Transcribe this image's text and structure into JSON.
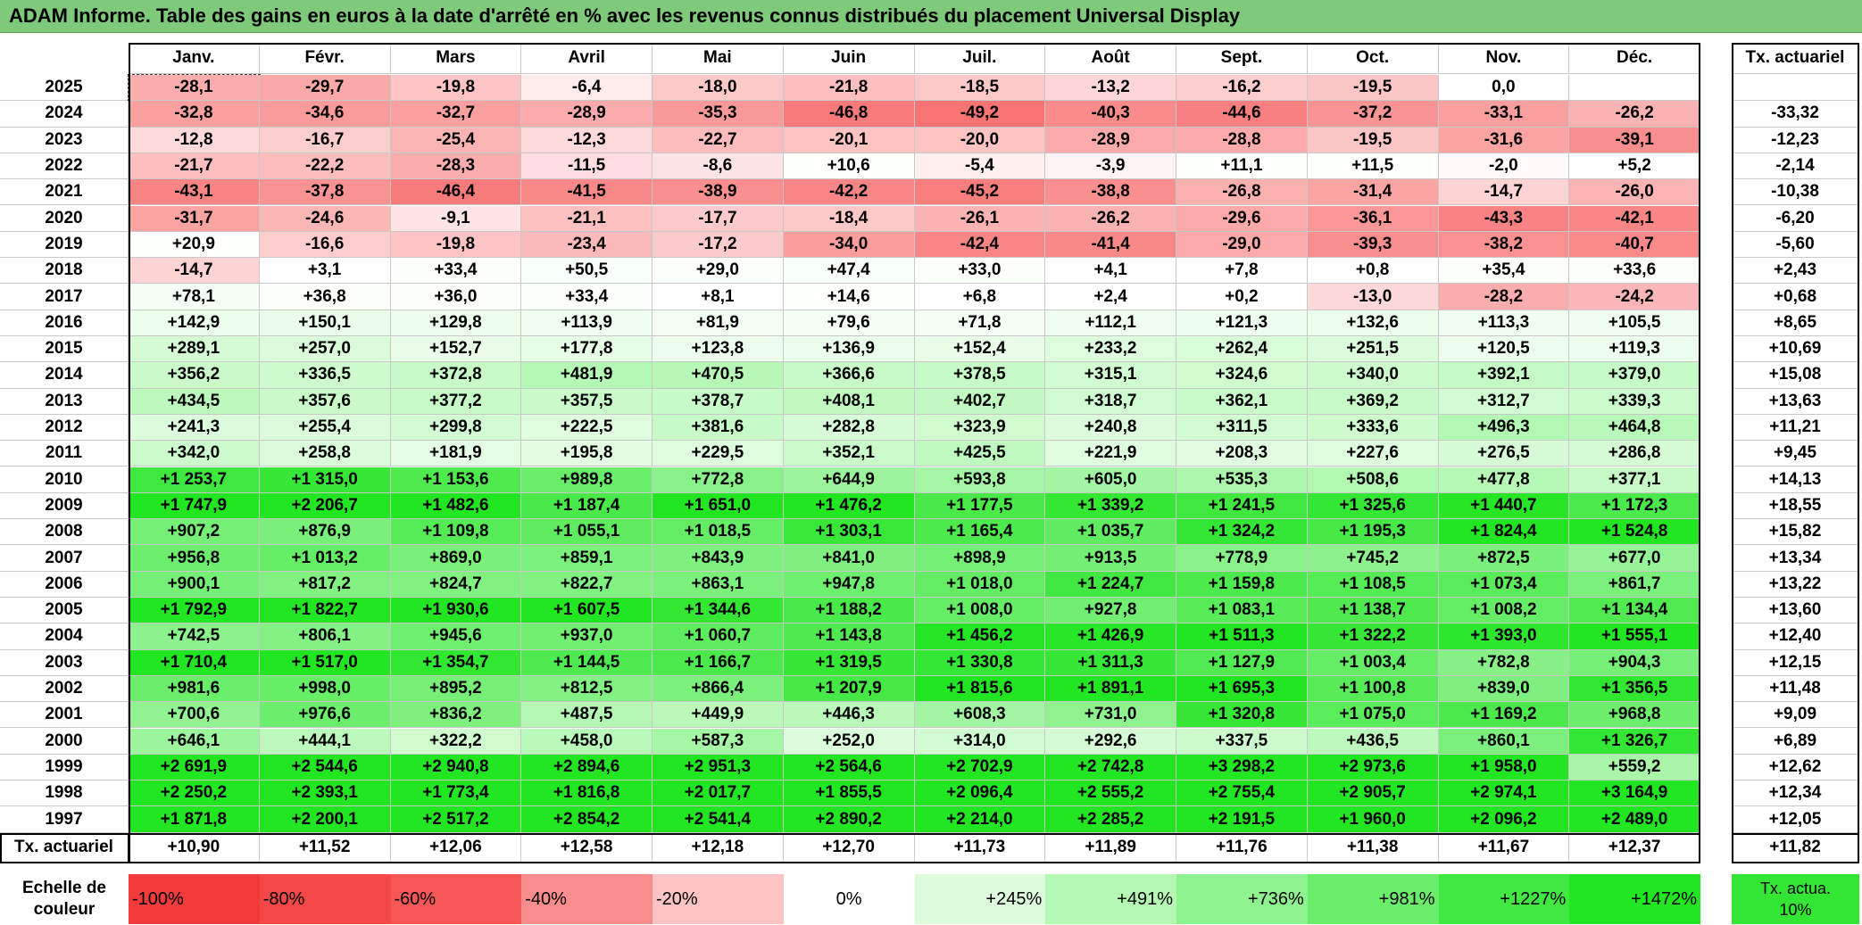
{
  "title": "ADAM Informe. Table des gains en euros à la date d'arrêté en % avec les revenus connus distribués du placement Universal Display",
  "table": {
    "header": [
      "Janv.",
      "Févr.",
      "Mars",
      "Avril",
      "Mai",
      "Juin",
      "Juil.",
      "Août",
      "Sept.",
      "Oct.",
      "Nov.",
      "Déc."
    ],
    "tx_header": "Tx. actuariel",
    "rows": [
      {
        "year": "2025",
        "cells": [
          "-28,1",
          "-29,7",
          "-19,8",
          "-6,4",
          "-18,0",
          "-21,8",
          "-18,5",
          "-13,2",
          "-16,2",
          "-19,5",
          "0,0",
          null
        ],
        "tx": null
      },
      {
        "year": "2024",
        "cells": [
          "-32,8",
          "-34,6",
          "-32,7",
          "-28,9",
          "-35,3",
          "-46,8",
          "-49,2",
          "-40,3",
          "-44,6",
          "-37,2",
          "-33,1",
          "-26,2"
        ],
        "tx": "-33,32"
      },
      {
        "year": "2023",
        "cells": [
          "-12,8",
          "-16,7",
          "-25,4",
          "-12,3",
          "-22,7",
          "-20,1",
          "-20,0",
          "-28,9",
          "-28,8",
          "-19,5",
          "-31,6",
          "-39,1"
        ],
        "tx": "-12,23"
      },
      {
        "year": "2022",
        "cells": [
          "-21,7",
          "-22,2",
          "-28,3",
          "-11,5",
          "-8,6",
          "+10,6",
          "-5,4",
          "-3,9",
          "+11,1",
          "+11,5",
          "-2,0",
          "+5,2"
        ],
        "tx": "-2,14"
      },
      {
        "year": "2021",
        "cells": [
          "-43,1",
          "-37,8",
          "-46,4",
          "-41,5",
          "-38,9",
          "-42,2",
          "-45,2",
          "-38,8",
          "-26,8",
          "-31,4",
          "-14,7",
          "-26,0"
        ],
        "tx": "-10,38"
      },
      {
        "year": "2020",
        "cells": [
          "-31,7",
          "-24,6",
          "-9,1",
          "-21,1",
          "-17,7",
          "-18,4",
          "-26,1",
          "-26,2",
          "-29,6",
          "-36,1",
          "-43,3",
          "-42,1"
        ],
        "tx": "-6,20"
      },
      {
        "year": "2019",
        "cells": [
          "+20,9",
          "-16,6",
          "-19,8",
          "-23,4",
          "-17,2",
          "-34,0",
          "-42,4",
          "-41,4",
          "-29,0",
          "-39,3",
          "-38,2",
          "-40,7"
        ],
        "tx": "-5,60"
      },
      {
        "year": "2018",
        "cells": [
          "-14,7",
          "+3,1",
          "+33,4",
          "+50,5",
          "+29,0",
          "+47,4",
          "+33,0",
          "+4,1",
          "+7,8",
          "+0,8",
          "+35,4",
          "+33,6"
        ],
        "tx": "+2,43"
      },
      {
        "year": "2017",
        "cells": [
          "+78,1",
          "+36,8",
          "+36,0",
          "+33,4",
          "+8,1",
          "+14,6",
          "+6,8",
          "+2,4",
          "+0,2",
          "-13,0",
          "-28,2",
          "-24,2"
        ],
        "tx": "+0,68"
      },
      {
        "year": "2016",
        "cells": [
          "+142,9",
          "+150,1",
          "+129,8",
          "+113,9",
          "+81,9",
          "+79,6",
          "+71,8",
          "+112,1",
          "+121,3",
          "+132,6",
          "+113,3",
          "+105,5"
        ],
        "tx": "+8,65"
      },
      {
        "year": "2015",
        "cells": [
          "+289,1",
          "+257,0",
          "+152,7",
          "+177,8",
          "+123,8",
          "+136,9",
          "+152,4",
          "+233,2",
          "+262,4",
          "+251,5",
          "+120,5",
          "+119,3"
        ],
        "tx": "+10,69"
      },
      {
        "year": "2014",
        "cells": [
          "+356,2",
          "+336,5",
          "+372,8",
          "+481,9",
          "+470,5",
          "+366,6",
          "+378,5",
          "+315,1",
          "+324,6",
          "+340,0",
          "+392,1",
          "+379,0"
        ],
        "tx": "+15,08"
      },
      {
        "year": "2013",
        "cells": [
          "+434,5",
          "+357,6",
          "+377,2",
          "+357,5",
          "+378,7",
          "+408,1",
          "+402,7",
          "+318,7",
          "+362,1",
          "+369,2",
          "+312,7",
          "+339,3"
        ],
        "tx": "+13,63"
      },
      {
        "year": "2012",
        "cells": [
          "+241,3",
          "+255,4",
          "+299,8",
          "+222,5",
          "+381,6",
          "+282,8",
          "+323,9",
          "+240,8",
          "+311,5",
          "+333,6",
          "+496,3",
          "+464,8"
        ],
        "tx": "+11,21"
      },
      {
        "year": "2011",
        "cells": [
          "+342,0",
          "+258,8",
          "+181,9",
          "+195,8",
          "+229,5",
          "+352,1",
          "+425,5",
          "+221,9",
          "+208,3",
          "+227,6",
          "+276,5",
          "+286,8"
        ],
        "tx": "+9,45"
      },
      {
        "year": "2010",
        "cells": [
          "+1 253,7",
          "+1 315,0",
          "+1 153,6",
          "+989,8",
          "+772,8",
          "+644,9",
          "+593,8",
          "+605,0",
          "+535,3",
          "+508,6",
          "+477,8",
          "+377,1"
        ],
        "tx": "+14,13"
      },
      {
        "year": "2009",
        "cells": [
          "+1 747,9",
          "+2 206,7",
          "+1 482,6",
          "+1 187,4",
          "+1 651,0",
          "+1 476,2",
          "+1 177,5",
          "+1 339,2",
          "+1 241,5",
          "+1 325,6",
          "+1 440,7",
          "+1 172,3"
        ],
        "tx": "+18,55"
      },
      {
        "year": "2008",
        "cells": [
          "+907,2",
          "+876,9",
          "+1 109,8",
          "+1 055,1",
          "+1 018,5",
          "+1 303,1",
          "+1 165,4",
          "+1 035,7",
          "+1 324,2",
          "+1 195,3",
          "+1 824,4",
          "+1 524,8"
        ],
        "tx": "+15,82"
      },
      {
        "year": "2007",
        "cells": [
          "+956,8",
          "+1 013,2",
          "+869,0",
          "+859,1",
          "+843,9",
          "+841,0",
          "+898,9",
          "+913,5",
          "+778,9",
          "+745,2",
          "+872,5",
          "+677,0"
        ],
        "tx": "+13,34"
      },
      {
        "year": "2006",
        "cells": [
          "+900,1",
          "+817,2",
          "+824,7",
          "+822,7",
          "+863,1",
          "+947,8",
          "+1 018,0",
          "+1 224,7",
          "+1 159,8",
          "+1 108,5",
          "+1 073,4",
          "+861,7"
        ],
        "tx": "+13,22"
      },
      {
        "year": "2005",
        "cells": [
          "+1 792,9",
          "+1 822,7",
          "+1 930,6",
          "+1 607,5",
          "+1 344,6",
          "+1 188,2",
          "+1 008,0",
          "+927,8",
          "+1 083,1",
          "+1 138,7",
          "+1 008,2",
          "+1 134,4"
        ],
        "tx": "+13,60"
      },
      {
        "year": "2004",
        "cells": [
          "+742,5",
          "+806,1",
          "+945,6",
          "+937,0",
          "+1 060,7",
          "+1 143,8",
          "+1 456,2",
          "+1 426,9",
          "+1 511,3",
          "+1 322,2",
          "+1 393,0",
          "+1 555,1"
        ],
        "tx": "+12,40"
      },
      {
        "year": "2003",
        "cells": [
          "+1 710,4",
          "+1 517,0",
          "+1 354,7",
          "+1 144,5",
          "+1 166,7",
          "+1 319,5",
          "+1 330,8",
          "+1 311,3",
          "+1 127,9",
          "+1 003,4",
          "+782,8",
          "+904,3"
        ],
        "tx": "+12,15"
      },
      {
        "year": "2002",
        "cells": [
          "+981,6",
          "+998,0",
          "+895,2",
          "+812,5",
          "+866,4",
          "+1 207,9",
          "+1 815,6",
          "+1 891,1",
          "+1 695,3",
          "+1 100,8",
          "+839,0",
          "+1 356,5"
        ],
        "tx": "+11,48"
      },
      {
        "year": "2001",
        "cells": [
          "+700,6",
          "+976,6",
          "+836,2",
          "+487,5",
          "+449,9",
          "+446,3",
          "+608,3",
          "+731,0",
          "+1 320,8",
          "+1 075,0",
          "+1 169,2",
          "+968,8"
        ],
        "tx": "+9,09"
      },
      {
        "year": "2000",
        "cells": [
          "+646,1",
          "+444,1",
          "+322,2",
          "+458,0",
          "+587,3",
          "+252,0",
          "+314,0",
          "+292,6",
          "+337,5",
          "+436,5",
          "+860,1",
          "+1 326,7"
        ],
        "tx": "+6,89"
      },
      {
        "year": "1999",
        "cells": [
          "+2 691,9",
          "+2 544,6",
          "+2 940,8",
          "+2 894,6",
          "+2 951,3",
          "+2 564,6",
          "+2 702,9",
          "+2 742,8",
          "+3 298,2",
          "+2 973,6",
          "+1 958,0",
          "+559,2"
        ],
        "tx": "+12,62"
      },
      {
        "year": "1998",
        "cells": [
          "+2 250,2",
          "+2 393,1",
          "+1 773,4",
          "+1 816,8",
          "+2 017,7",
          "+1 855,5",
          "+2 096,4",
          "+2 555,2",
          "+2 755,4",
          "+2 905,7",
          "+2 974,1",
          "+3 164,9"
        ],
        "tx": "+12,34"
      },
      {
        "year": "1997",
        "cells": [
          "+1 871,8",
          "+2 200,1",
          "+2 517,2",
          "+2 854,2",
          "+2 541,4",
          "+2 890,2",
          "+2 214,0",
          "+2 285,2",
          "+2 191,5",
          "+1 960,0",
          "+2 096,2",
          "+2 489,0"
        ],
        "tx": "+12,05"
      }
    ],
    "footer": {
      "label": "Tx. actuariel",
      "cells": [
        "+10,90",
        "+11,52",
        "+12,06",
        "+12,58",
        "+12,18",
        "+12,70",
        "+11,73",
        "+11,89",
        "+11,76",
        "+11,38",
        "+11,67",
        "+12,37"
      ],
      "tx": "+11,82"
    }
  },
  "legend": {
    "label": "Echelle de couleur",
    "stops": [
      {
        "label": "-100%",
        "color": "#f23c3c"
      },
      {
        "label": "-80%",
        "color": "#f44848"
      },
      {
        "label": "-60%",
        "color": "#f65656"
      },
      {
        "label": "-40%",
        "color": "#f98c8c"
      },
      {
        "label": "-20%",
        "color": "#fcc3c3"
      },
      {
        "label": "0%",
        "color": "#ffffff"
      },
      {
        "label": "+245%",
        "color": "#dcfcdc"
      },
      {
        "label": "+491%",
        "color": "#b4f8b4"
      },
      {
        "label": "+736%",
        "color": "#8ef28e"
      },
      {
        "label": "+981%",
        "color": "#6aee6a"
      },
      {
        "label": "+1227%",
        "color": "#42e842"
      },
      {
        "label": "+1472%",
        "color": "#22e622"
      }
    ],
    "tx_label": "Tx. actua. 10%",
    "tx_color": "#33e633"
  }
}
